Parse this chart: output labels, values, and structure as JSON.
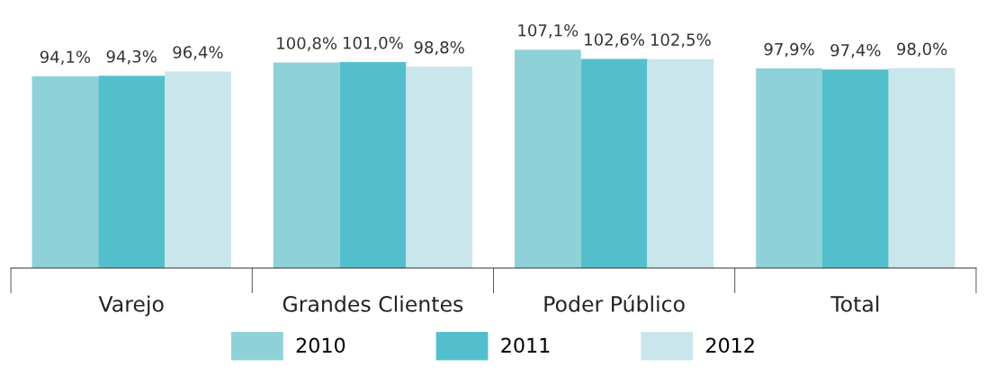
{
  "chart_data": {
    "type": "bar",
    "categories": [
      "Varejo",
      "Grandes Clientes",
      "Poder Público",
      "Total"
    ],
    "legend": "bottom",
    "grid": false,
    "series": [
      {
        "name": "2010",
        "color": "#8fd1d9",
        "values": [
          94.1,
          100.8,
          107.1,
          97.9
        ],
        "value_labels": [
          "94,1%",
          "100,8%",
          "107,1%",
          "97,9%"
        ]
      },
      {
        "name": "2011",
        "color": "#53bfcc",
        "values": [
          94.3,
          101.0,
          102.6,
          97.4
        ],
        "value_labels": [
          "94,3%",
          "101,0%",
          "102,6%",
          "97,4%"
        ]
      },
      {
        "name": "2012",
        "color": "#c8e6eb",
        "values": [
          96.4,
          98.8,
          102.5,
          98.0
        ],
        "value_labels": [
          "96,4%",
          "98,8%",
          "102,5%",
          "98,0%"
        ]
      }
    ]
  }
}
